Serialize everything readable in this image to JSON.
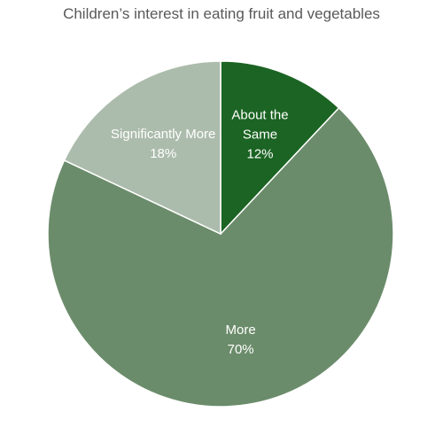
{
  "chart_data": {
    "type": "pie",
    "title": "Children’s interest in eating fruit and vegetables",
    "start_angle_deg": 0,
    "direction": "clockwise",
    "legend": "none",
    "slices": [
      {
        "label_lines": [
          "About the",
          "Same"
        ],
        "value": 12,
        "value_label": "12%",
        "color": "#1b6423"
      },
      {
        "label_lines": [
          "More"
        ],
        "value": 70,
        "value_label": "70%",
        "color": "#6b8c6b"
      },
      {
        "label_lines": [
          "Significantly More"
        ],
        "value": 18,
        "value_label": "18%",
        "color": "#acbcac"
      }
    ]
  }
}
